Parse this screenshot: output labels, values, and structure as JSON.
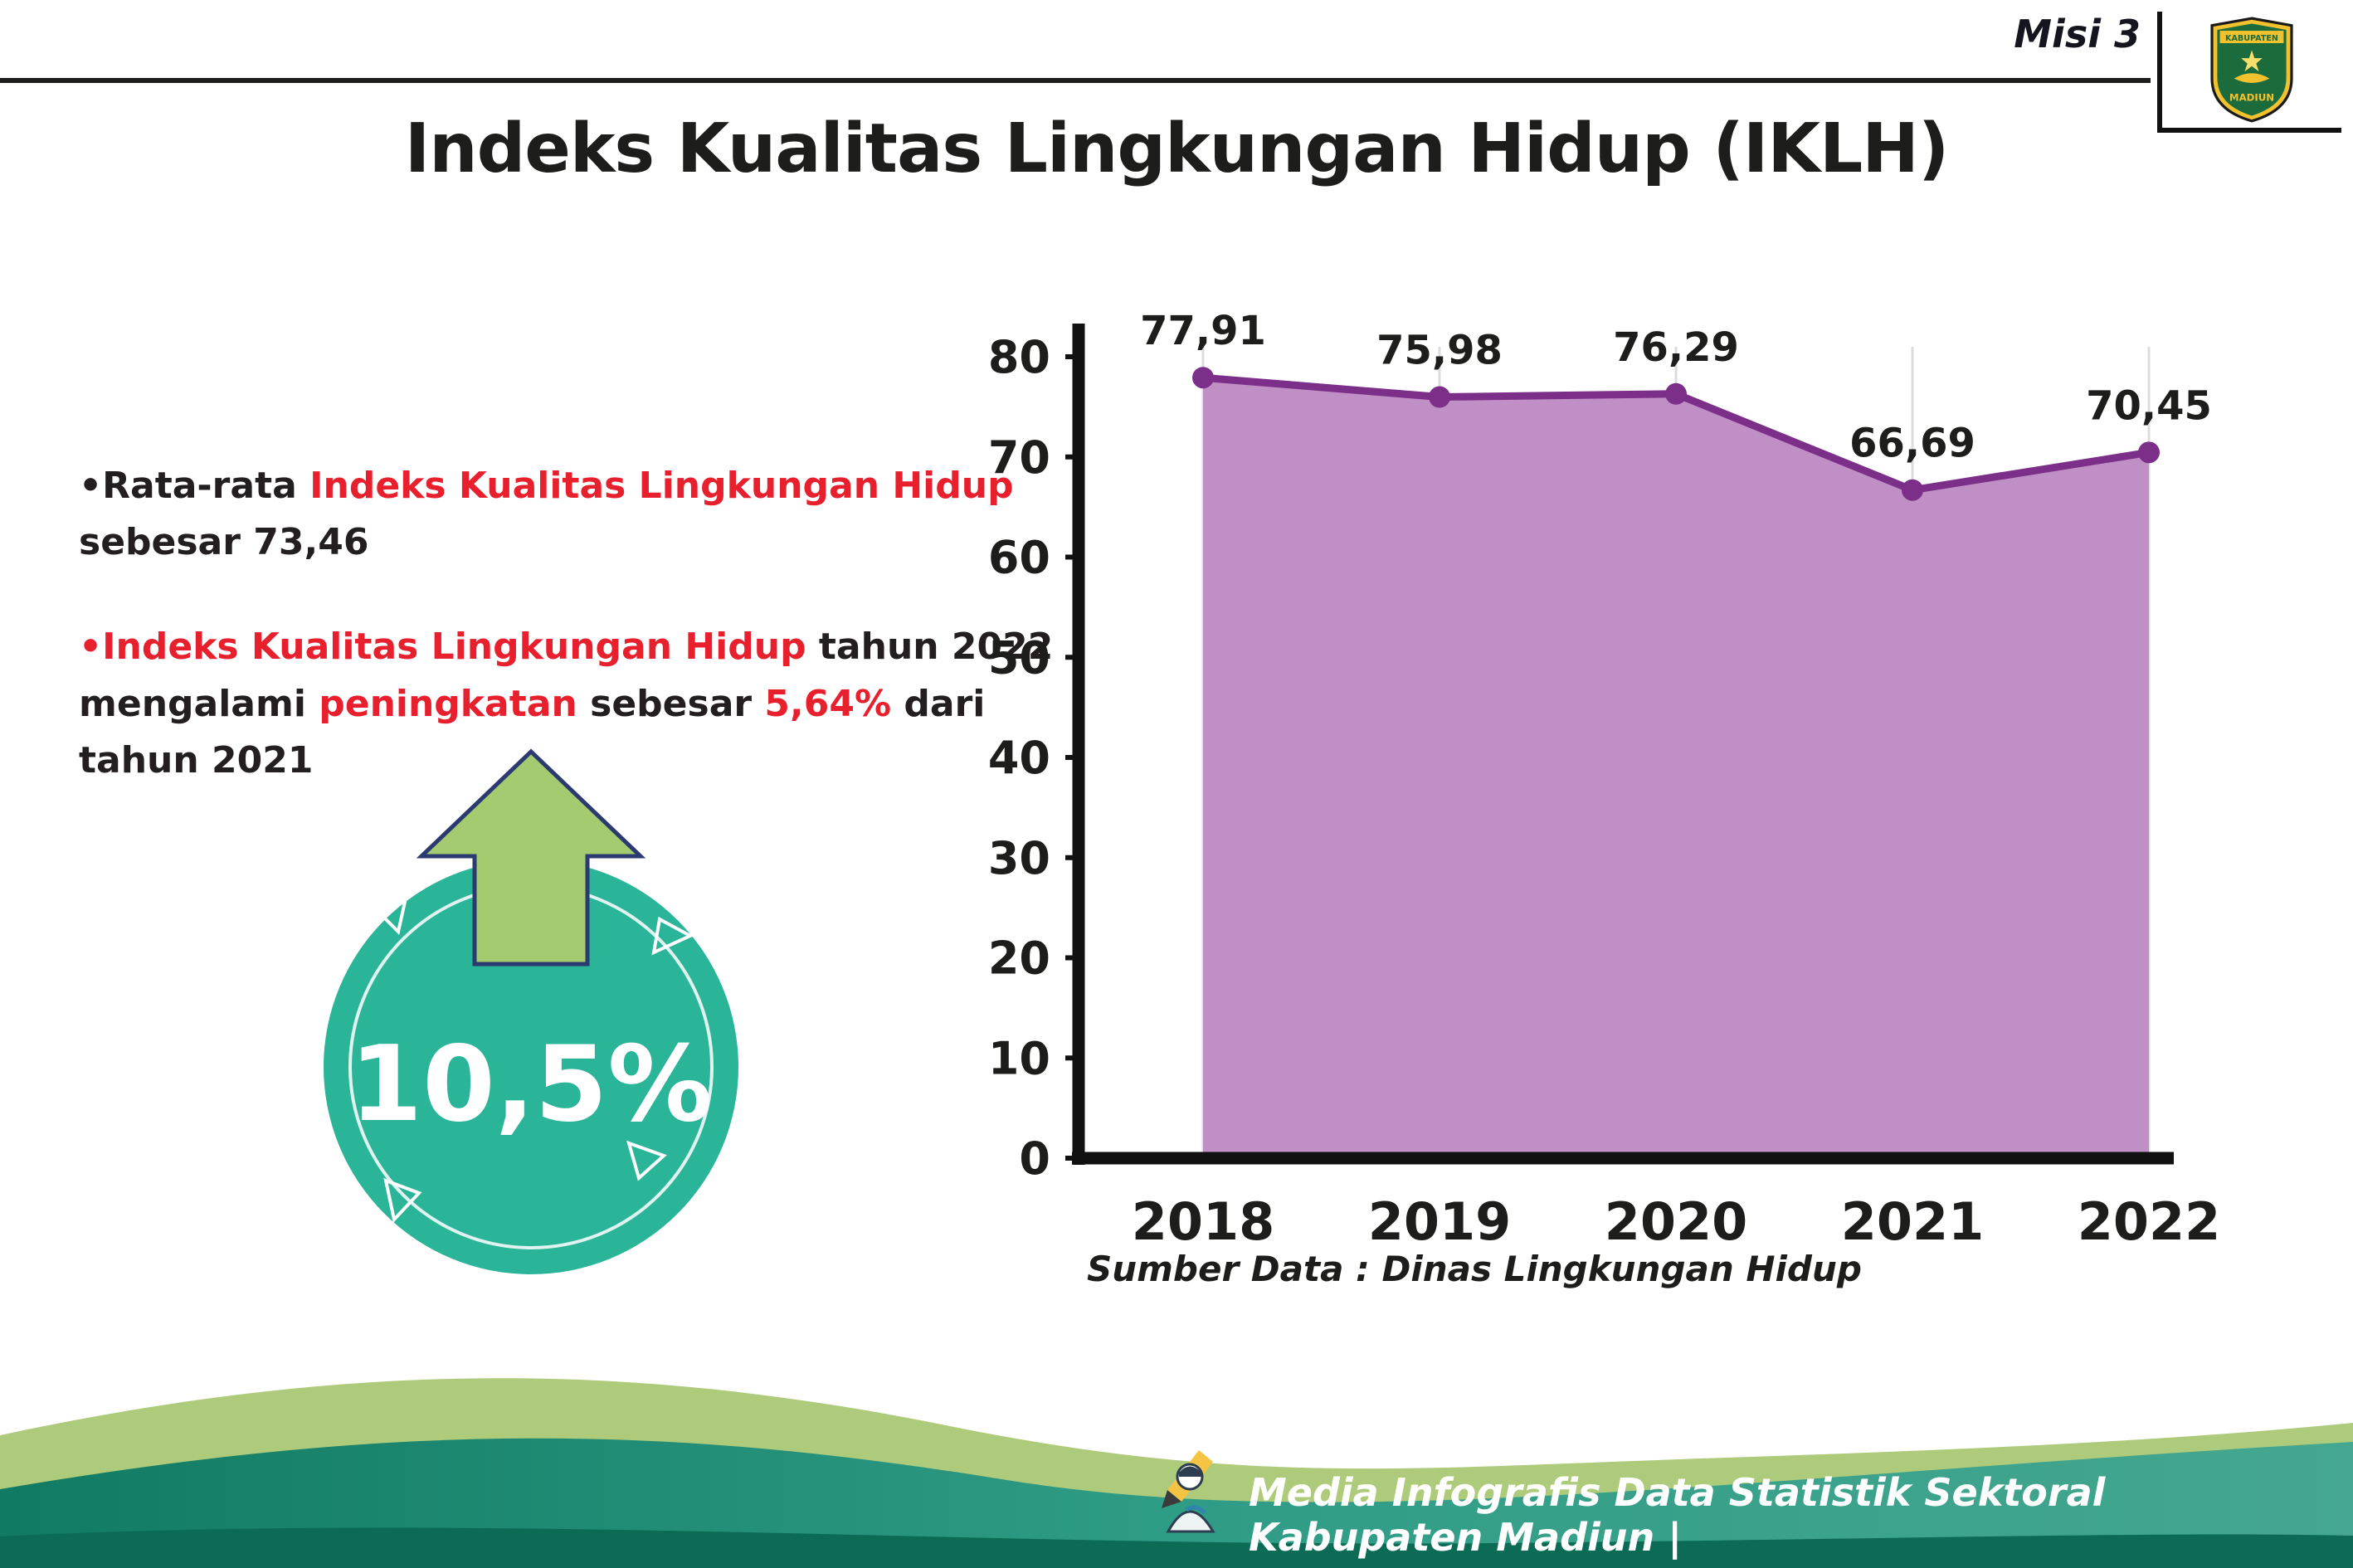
{
  "header": {
    "misi_label": "Misi 3",
    "title": "Indeks Kualitas Lingkungan Hidup (IKLH)"
  },
  "logo": {
    "top_text": "KABUPATEN",
    "bottom_text": "MADIUN"
  },
  "bullets": [
    {
      "marker": "•",
      "segments": [
        {
          "text": "Rata-rata "
        },
        {
          "text": "Indeks Kualitas Lingkungan Hidup"
        },
        {
          "text": " sebesar 73,46"
        }
      ]
    },
    {
      "marker": "•",
      "segments": [
        {
          "text": "Indeks Kualitas Lingkungan Hidup"
        },
        {
          "text": " tahun 2022 mengalami "
        },
        {
          "text": "peningkatan"
        },
        {
          "text": " sebesar "
        },
        {
          "text": "5,64%"
        },
        {
          "text": " dari tahun 2021"
        }
      ]
    }
  ],
  "badge": {
    "value": "10,5%",
    "circle_color": "#2ab498",
    "arrow_color": "#a5cb70",
    "arrow_outline": "#2b3a70"
  },
  "chart_data": {
    "type": "area",
    "categories": [
      "2018",
      "2019",
      "2020",
      "2021",
      "2022"
    ],
    "values": [
      77.91,
      75.98,
      76.29,
      66.69,
      70.45
    ],
    "value_labels": [
      "77,91",
      "75,98",
      "76,29",
      "66,69",
      "70,45"
    ],
    "ylim": [
      0,
      80
    ],
    "yticks": [
      0,
      10,
      20,
      30,
      40,
      50,
      60,
      70,
      80
    ],
    "grid": "vertical-light",
    "legend": "none",
    "fill_color": "#c08fc5",
    "line_color": "#7b2f88",
    "source": "Sumber Data : Dinas Lingkungan Hidup"
  },
  "footer": {
    "text": "Media Infografis Data Statistik Sektoral Kabupaten Madiun |"
  },
  "colors": {
    "text_dark": "#231f20",
    "text_red": "#e8202e",
    "axis_black": "#111111",
    "footer_teal_dark": "#11735c",
    "footer_teal": "#2f9c86",
    "footer_light_green": "#aecb7c"
  }
}
